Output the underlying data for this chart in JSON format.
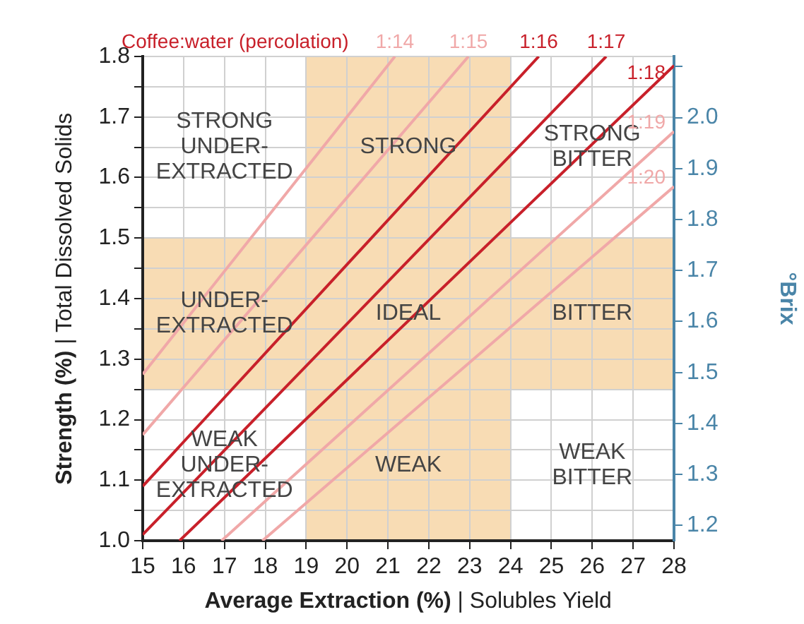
{
  "chart_data": {
    "type": "line",
    "legend_title": "Coffee:water (percolation)",
    "xlabel": "Average Extraction (%) | Solubles Yield",
    "ylabel": "Strength (%) | Total Dissolved Solids",
    "y2label": "°Brix",
    "xlim": [
      15,
      28
    ],
    "xticks": [
      15,
      16,
      17,
      18,
      19,
      20,
      21,
      22,
      23,
      24,
      25,
      26,
      27,
      28
    ],
    "ylim": [
      1.0,
      1.8
    ],
    "yticks": [
      {
        "value": 1.0,
        "label": "1.0"
      },
      {
        "value": 1.05,
        "label": null
      },
      1.1,
      {
        "value": 1.15,
        "label": null
      },
      1.2,
      {
        "value": 1.25,
        "label": null
      },
      1.3,
      {
        "value": 1.35,
        "label": null
      },
      1.4,
      {
        "value": 1.45,
        "label": null
      },
      1.5,
      {
        "value": 1.55,
        "label": null
      },
      1.6,
      {
        "value": 1.65,
        "label": null
      },
      1.7,
      {
        "value": 1.75,
        "label": null
      },
      1.8
    ],
    "y2lim": [
      1.17,
      2.12
    ],
    "y2ticks": [
      1.2,
      1.3,
      1.4,
      1.5,
      1.6,
      1.7,
      1.8,
      1.9,
      {
        "value": 2.0,
        "label": "2.0"
      },
      {
        "value": 2.1,
        "label": null
      }
    ],
    "grid": true,
    "marker": "none",
    "line_style": "solid",
    "bands": [
      {
        "axis": "x",
        "from": 19,
        "to": 24,
        "color": "#f8dcb4"
      },
      {
        "axis": "y",
        "from": 1.25,
        "to": 1.5,
        "color": "#f8dcb4"
      }
    ],
    "series": [
      {
        "name": "1:14",
        "color": "#f0a8a8",
        "x": [
          15,
          21.17
        ],
        "values": [
          1.275,
          1.8
        ]
      },
      {
        "name": "1:15",
        "color": "#f0a8a8",
        "x": [
          15,
          22.97
        ],
        "values": [
          1.175,
          1.8
        ]
      },
      {
        "name": "1:16",
        "color": "#c8202a",
        "x": [
          15,
          24.69
        ],
        "values": [
          1.09,
          1.8
        ]
      },
      {
        "name": "1:17",
        "color": "#c8202a",
        "x": [
          15,
          26.34
        ],
        "values": [
          1.01,
          1.8
        ]
      },
      {
        "name": "1:18",
        "color": "#c8202a",
        "x": [
          15.9,
          28
        ],
        "values": [
          1.0,
          1.785
        ]
      },
      {
        "name": "1:19",
        "color": "#f0a8a8",
        "x": [
          16.93,
          28
        ],
        "values": [
          1.0,
          1.676
        ]
      },
      {
        "name": "1:20",
        "color": "#f0a8a8",
        "x": [
          17.93,
          28
        ],
        "values": [
          1.0,
          1.585
        ]
      }
    ],
    "annotations": [
      "STRONG\nUNDER-\nEXTRACTED",
      "STRONG",
      "STRONG\nBITTER",
      "UNDER-\nEXTRACTED",
      "IDEAL",
      "BITTER",
      "WEAK\nUNDER-\nEXTRACTED",
      "WEAK",
      "WEAK\nBITTER"
    ]
  }
}
